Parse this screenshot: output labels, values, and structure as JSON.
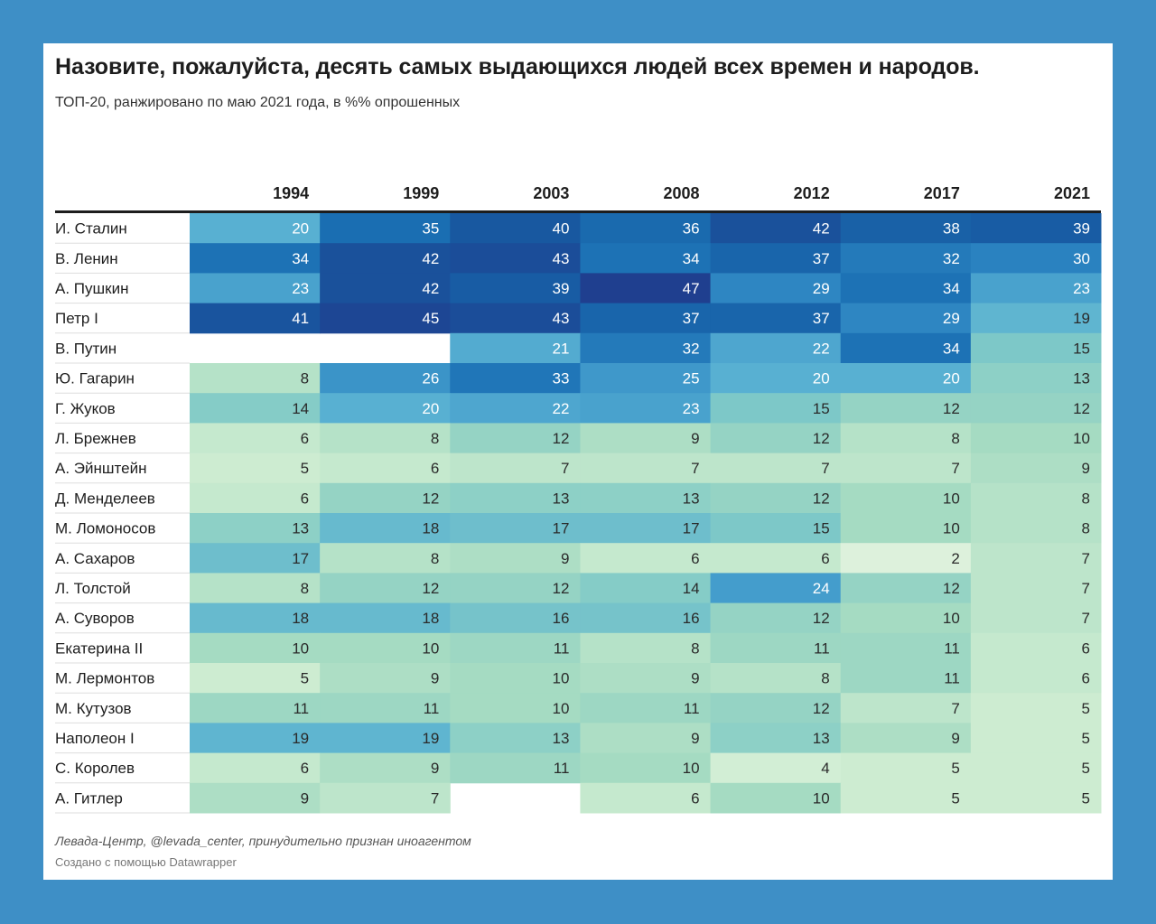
{
  "title": "Назовите, пожалуйста, десять самых выдающихся людей всех времен и народов.",
  "subtitle": "ТОП-20, ранжировано по маю 2021 года, в %% опрошенных",
  "source": "Левада-Центр, @levada_center, принудительно признан иноагентом",
  "credit": "Создано с помощью Datawrapper",
  "colors": {
    "background": "#3e8fc6",
    "card": "#ffffff",
    "low": "#e7f5e4",
    "high": "#1f3f8f"
  },
  "chart_data": {
    "type": "heatmap",
    "columns": [
      "1994",
      "1999",
      "2003",
      "2008",
      "2012",
      "2017",
      "2021"
    ],
    "rows": [
      {
        "name": "И. Сталин",
        "values": [
          20,
          35,
          40,
          36,
          42,
          38,
          39
        ]
      },
      {
        "name": "В. Ленин",
        "values": [
          34,
          42,
          43,
          34,
          37,
          32,
          30
        ]
      },
      {
        "name": "А. Пушкин",
        "values": [
          23,
          42,
          39,
          47,
          29,
          34,
          23
        ]
      },
      {
        "name": "Петр I",
        "values": [
          41,
          45,
          43,
          37,
          37,
          29,
          19
        ]
      },
      {
        "name": "В. Путин",
        "values": [
          null,
          null,
          21,
          32,
          22,
          34,
          15
        ]
      },
      {
        "name": "Ю. Гагарин",
        "values": [
          8,
          26,
          33,
          25,
          20,
          20,
          13
        ]
      },
      {
        "name": "Г. Жуков",
        "values": [
          14,
          20,
          22,
          23,
          15,
          12,
          12
        ]
      },
      {
        "name": "Л. Брежнев",
        "values": [
          6,
          8,
          12,
          9,
          12,
          8,
          10
        ]
      },
      {
        "name": "А. Эйнштейн",
        "values": [
          5,
          6,
          7,
          7,
          7,
          7,
          9
        ]
      },
      {
        "name": "Д. Менделеев",
        "values": [
          6,
          12,
          13,
          13,
          12,
          10,
          8
        ]
      },
      {
        "name": "М. Ломоносов",
        "values": [
          13,
          18,
          17,
          17,
          15,
          10,
          8
        ]
      },
      {
        "name": "А. Сахаров",
        "values": [
          17,
          8,
          9,
          6,
          6,
          2,
          7
        ]
      },
      {
        "name": "Л. Толстой",
        "values": [
          8,
          12,
          12,
          14,
          24,
          12,
          7
        ]
      },
      {
        "name": "А. Суворов",
        "values": [
          18,
          18,
          16,
          16,
          12,
          10,
          7
        ]
      },
      {
        "name": "Екатерина II",
        "values": [
          10,
          10,
          11,
          8,
          11,
          11,
          6
        ]
      },
      {
        "name": "М. Лермонтов",
        "values": [
          5,
          9,
          10,
          9,
          8,
          11,
          6
        ]
      },
      {
        "name": "М. Кутузов",
        "values": [
          11,
          11,
          10,
          11,
          12,
          7,
          5
        ]
      },
      {
        "name": "Наполеон I",
        "values": [
          19,
          19,
          13,
          9,
          13,
          9,
          5
        ]
      },
      {
        "name": "С. Королев",
        "values": [
          6,
          9,
          11,
          10,
          4,
          5,
          5
        ]
      },
      {
        "name": "А. Гитлер",
        "values": [
          9,
          7,
          null,
          6,
          10,
          5,
          5
        ]
      }
    ]
  }
}
